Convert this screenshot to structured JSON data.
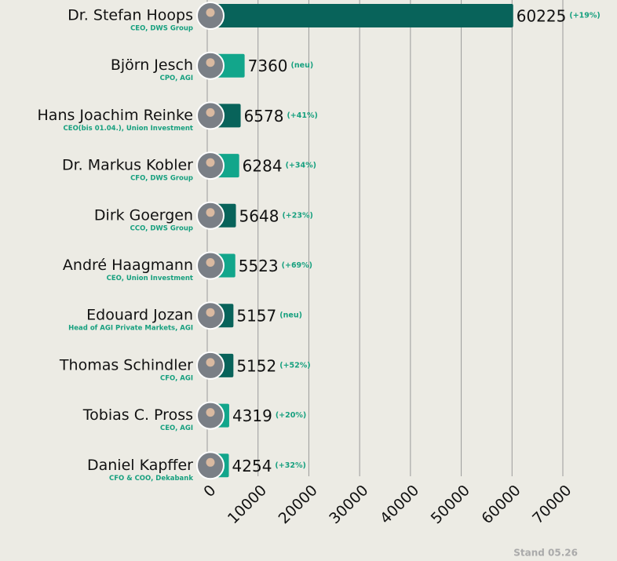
{
  "chart_data": {
    "type": "barh",
    "categories": [
      "Dr. Stefan Hoops",
      "Björn Jesch",
      "Hans Joachim Reinke",
      "Dr. Markus Kobler",
      "Dirk Goergen",
      "André Haagmann",
      "Edouard Jozan",
      "Thomas Schindler",
      "Tobias C. Pross",
      "Daniel Kapffer"
    ],
    "roles": [
      "CEO, DWS Group",
      "CPO, AGI",
      "CEO(bis 01.04.), Union Investment",
      "CFO, DWS Group",
      "CCO, DWS Group",
      "CEO, Union Investment",
      "Head of AGI Private Markets, AGI",
      "CFO, AGI",
      "CEO, AGI",
      "CFO & COO, Dekabank"
    ],
    "values": [
      60225,
      7360,
      6578,
      6284,
      5648,
      5523,
      5157,
      5152,
      4319,
      4254
    ],
    "changes": [
      "(+19%)",
      "(neu)",
      "(+41%)",
      "(+34%)",
      "(+23%)",
      "(+69%)",
      "(neu)",
      "(+52%)",
      "(+20%)",
      "(+32%)"
    ],
    "colors": [
      "#08635a",
      "#12a68b",
      "#08635a",
      "#12a68b",
      "#08635a",
      "#12a68b",
      "#08635a",
      "#08635a",
      "#12a68b",
      "#12a68b"
    ],
    "xlim": [
      0,
      70000
    ],
    "xticks": [
      0,
      10000,
      20000,
      30000,
      40000,
      50000,
      60000,
      70000
    ],
    "grid": true,
    "footnote": "Stand 05.26"
  }
}
